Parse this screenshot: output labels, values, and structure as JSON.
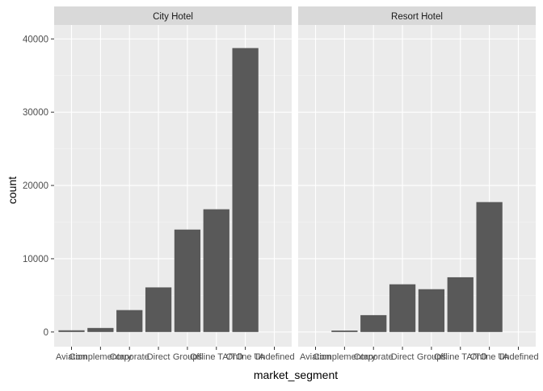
{
  "chart_data": {
    "type": "bar",
    "xlabel": "market_segment",
    "ylabel": "count",
    "ylim": [
      -2000,
      41900
    ],
    "yticks": [
      0,
      10000,
      20000,
      30000,
      40000
    ],
    "grid": true,
    "categories": [
      "Aviation",
      "Complementary",
      "Corporate",
      "Direct",
      "Groups",
      "Offline TA/TO",
      "Online TA",
      "Undefined"
    ],
    "panels": [
      {
        "name": "City Hotel",
        "values": [
          230,
          550,
          2990,
          6090,
          13980,
          16750,
          38750,
          2
        ]
      },
      {
        "name": "Resort Hotel",
        "values": [
          0,
          200,
          2300,
          6510,
          5840,
          7470,
          17730,
          0
        ]
      }
    ],
    "colors": {
      "bar": "#595959",
      "panel_background": "#ebebeb",
      "grid_major": "#ffffff",
      "strip_background": "#d9d9d9",
      "text": "#4d4d4d",
      "title_text": "#000000"
    }
  }
}
